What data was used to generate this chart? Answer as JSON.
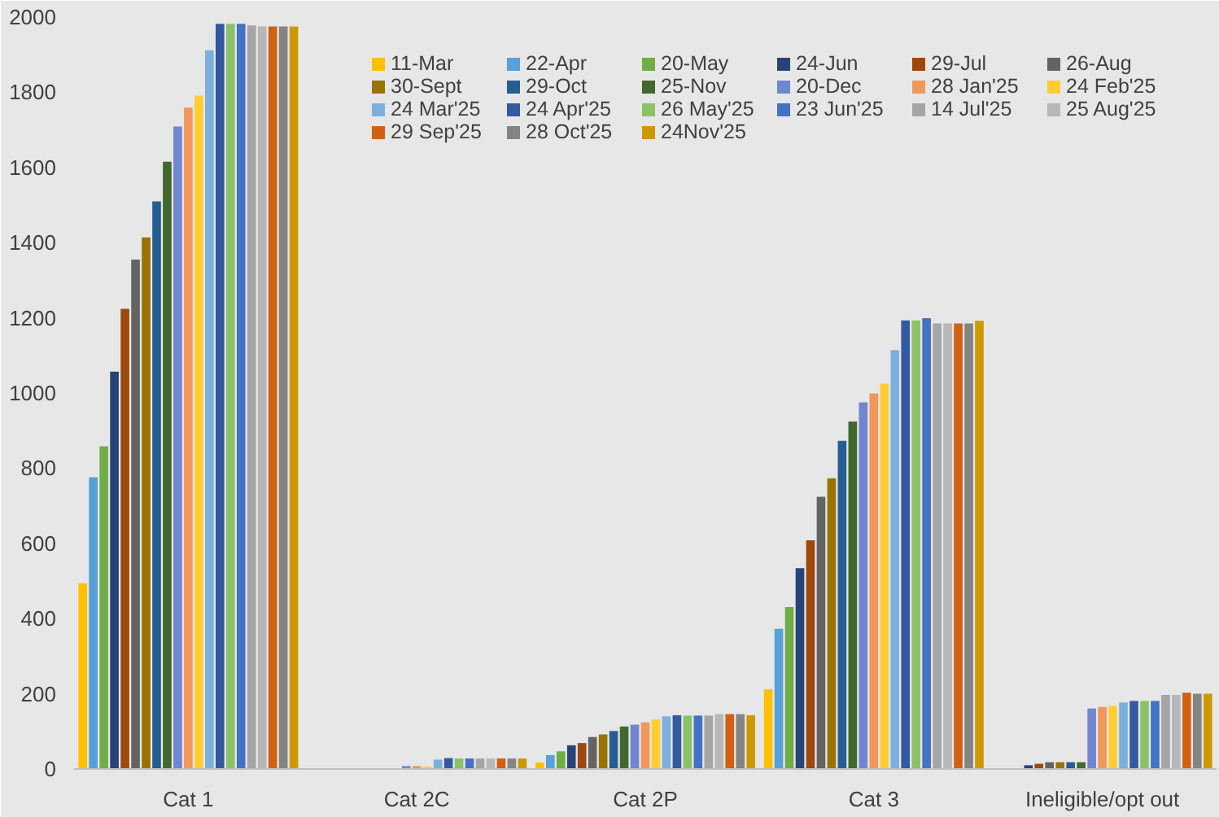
{
  "chart_data": {
    "type": "bar",
    "categories": [
      "Cat 1",
      "Cat 2C",
      "Cat 2P",
      "Cat 3",
      "Ineligible/opt out"
    ],
    "ylim": [
      0,
      2000
    ],
    "yticks": [
      0,
      200,
      400,
      600,
      800,
      1000,
      1200,
      1400,
      1600,
      1800,
      2000
    ],
    "legend": "top right",
    "series": [
      {
        "name": "11-Mar",
        "color": "#ffc000",
        "values": [
          494,
          0,
          17,
          212,
          0
        ]
      },
      {
        "name": "22-Apr",
        "color": "#58a0d8",
        "values": [
          776,
          0,
          37,
          373,
          0
        ]
      },
      {
        "name": "20-May",
        "color": "#70ad47",
        "values": [
          858,
          0,
          47,
          431,
          0
        ]
      },
      {
        "name": "24-Jun",
        "color": "#264478",
        "values": [
          1057,
          0,
          63,
          534,
          10
        ]
      },
      {
        "name": "29-Jul",
        "color": "#9e480e",
        "values": [
          1224,
          0,
          69,
          608,
          14
        ]
      },
      {
        "name": "26-Aug",
        "color": "#636363",
        "values": [
          1355,
          0,
          85,
          724,
          18
        ]
      },
      {
        "name": "30-Sept",
        "color": "#997300",
        "values": [
          1414,
          0,
          92,
          773,
          18
        ]
      },
      {
        "name": "29-Oct",
        "color": "#255e91",
        "values": [
          1510,
          0,
          101,
          873,
          18
        ]
      },
      {
        "name": "25-Nov",
        "color": "#43682b",
        "values": [
          1615,
          0,
          113,
          924,
          18
        ]
      },
      {
        "name": "20-Dec",
        "color": "#7086d2",
        "values": [
          1709,
          8,
          118,
          975,
          161
        ]
      },
      {
        "name": "28 Jan'25",
        "color": "#f1975a",
        "values": [
          1759,
          8,
          124,
          999,
          165
        ]
      },
      {
        "name": "24 Feb'25",
        "color": "#ffcd33",
        "values": [
          1791,
          6,
          132,
          1025,
          168
        ]
      },
      {
        "name": "24 Mar'25",
        "color": "#7cafdd",
        "values": [
          1912,
          25,
          140,
          1114,
          177
        ]
      },
      {
        "name": "24 Apr'25",
        "color": "#335aa1",
        "values": [
          1982,
          29,
          143,
          1193,
          181
        ]
      },
      {
        "name": "26 May'25",
        "color": "#8cc168",
        "values": [
          1982,
          28,
          142,
          1193,
          181
        ]
      },
      {
        "name": "23 Jun'25",
        "color": "#4472c4",
        "values": [
          1982,
          28,
          142,
          1199,
          181
        ]
      },
      {
        "name": "14 Jul'25",
        "color": "#a5a5a5",
        "values": [
          1978,
          28,
          142,
          1185,
          197
        ]
      },
      {
        "name": "25 Aug'25",
        "color": "#b7b7b7",
        "values": [
          1975,
          28,
          146,
          1185,
          197
        ]
      },
      {
        "name": "29 Sep'25",
        "color": "#d26012",
        "values": [
          1975,
          28,
          146,
          1185,
          203
        ]
      },
      {
        "name": "28 Oct'25",
        "color": "#848484",
        "values": [
          1975,
          28,
          146,
          1185,
          200
        ]
      },
      {
        "name": "24Nov'25",
        "color": "#cc9a00",
        "values": [
          1975,
          28,
          143,
          1192,
          200
        ]
      }
    ]
  }
}
